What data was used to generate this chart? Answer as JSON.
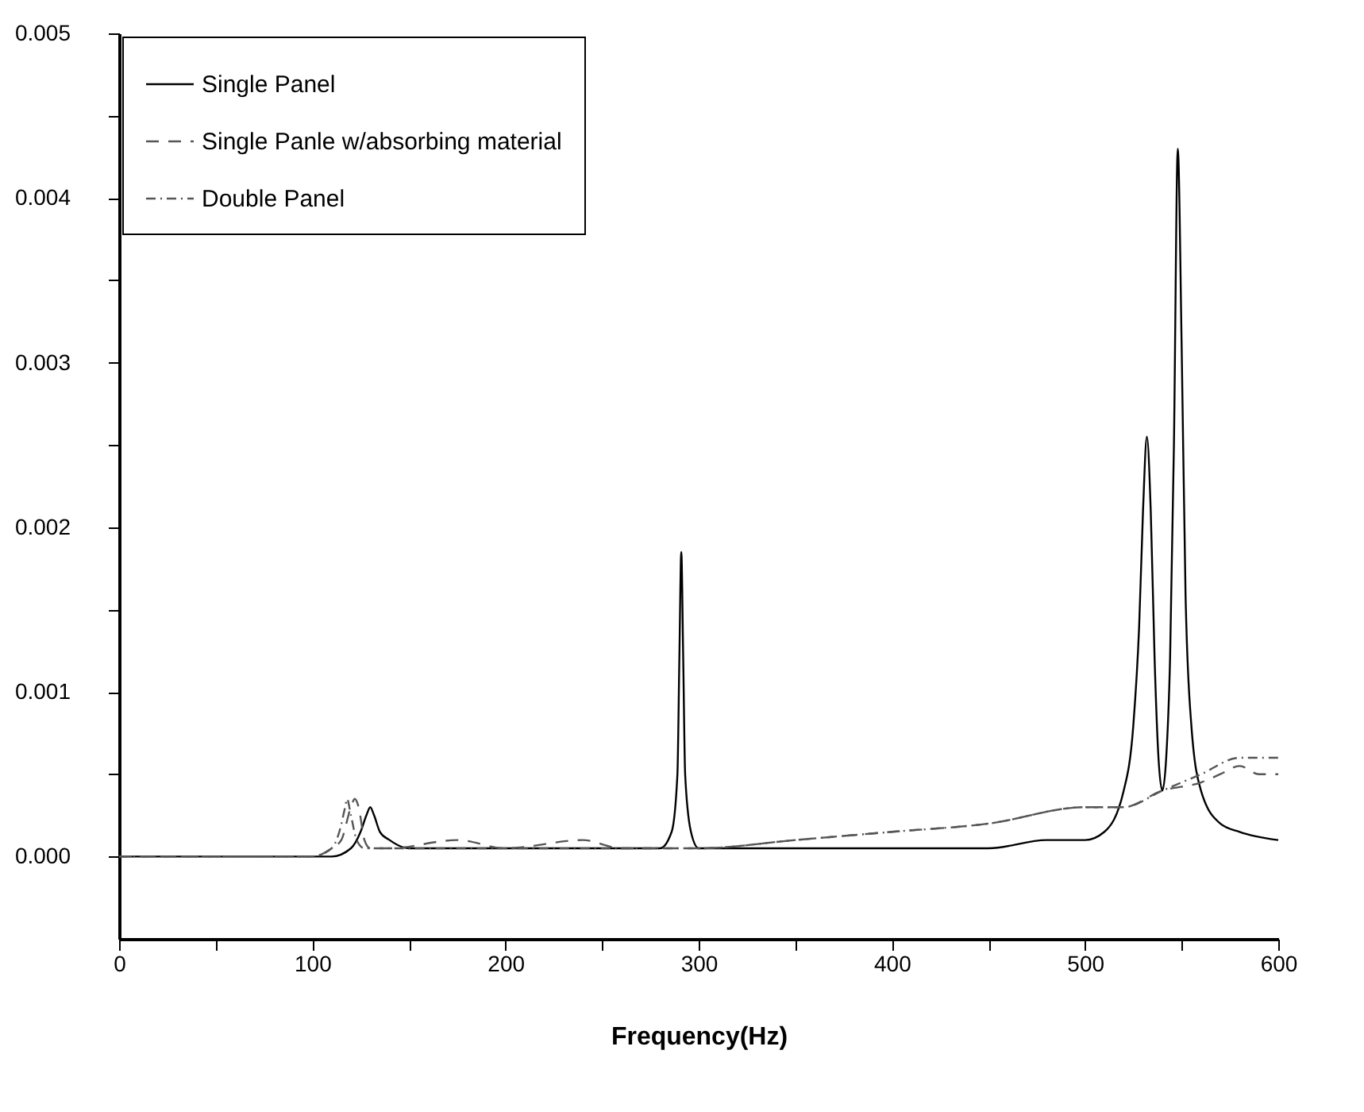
{
  "chart_data": {
    "type": "line",
    "xlabel": "Frequency(Hz)",
    "legend": "top left",
    "xlim": [
      0,
      600
    ],
    "xticks": [
      0,
      {
        "value": 50,
        "label": null
      },
      100,
      {
        "value": 150,
        "label": null
      },
      200,
      {
        "value": 250,
        "label": null
      },
      300,
      {
        "value": 350,
        "label": null
      },
      400,
      {
        "value": 450,
        "label": null
      },
      500,
      {
        "value": 550,
        "label": null
      },
      600
    ],
    "ylim": [
      -0.0005,
      0.005
    ],
    "yticks": [
      {
        "value": 0,
        "label": "0.000"
      },
      {
        "value": 0.0005,
        "label": null
      },
      {
        "value": 0.001,
        "label": "0.001"
      },
      {
        "value": 0.0015,
        "label": null
      },
      {
        "value": 0.002,
        "label": "0.002"
      },
      {
        "value": 0.0025,
        "label": null
      },
      {
        "value": 0.003,
        "label": "0.003"
      },
      {
        "value": 0.0035,
        "label": null
      },
      {
        "value": 0.004,
        "label": "0.004"
      },
      {
        "value": 0.0045,
        "label": null
      },
      {
        "value": 0.005,
        "label": "0.005"
      }
    ],
    "series": [
      {
        "name": "Single Panel",
        "color": "#000000",
        "line_style": "solid",
        "x": [
          0,
          50,
          100,
          110,
          120,
          125,
          128,
          130,
          132,
          135,
          140,
          150,
          200,
          250,
          280,
          286,
          289,
          290,
          291,
          292,
          293,
          296,
          300,
          350,
          400,
          450,
          480,
          500,
          510,
          520,
          525,
          528,
          530,
          532,
          534,
          536,
          538,
          540,
          542,
          544,
          546,
          548,
          550,
          552,
          555,
          560,
          570,
          580,
          600
        ],
        "values": [
          0,
          0,
          0,
          0,
          5e-05,
          0.00015,
          0.00025,
          0.0003,
          0.00025,
          0.00015,
          0.0001,
          5e-05,
          5e-05,
          5e-05,
          5e-05,
          0.00015,
          0.0005,
          0.0012,
          0.00185,
          0.0012,
          0.0005,
          0.00015,
          5e-05,
          5e-05,
          5e-05,
          5e-05,
          0.0001,
          0.0001,
          0.00015,
          0.0004,
          0.0008,
          0.0014,
          0.0021,
          0.00255,
          0.0021,
          0.0012,
          0.0006,
          0.0004,
          0.0006,
          0.0012,
          0.0025,
          0.0043,
          0.0031,
          0.0016,
          0.0008,
          0.0004,
          0.0002,
          0.00015,
          0.0001
        ]
      },
      {
        "name": "Single Panle w/absorbing material",
        "color": "#555555",
        "line_style": "dashed",
        "x": [
          0,
          100,
          110,
          115,
          120,
          122,
          124,
          127,
          130,
          140,
          175,
          200,
          240,
          260,
          300,
          350,
          400,
          450,
          500,
          520,
          540,
          560,
          570,
          580,
          590,
          600
        ],
        "values": [
          0,
          0,
          5e-05,
          0.0001,
          0.0003,
          0.00035,
          0.0003,
          0.0001,
          5e-05,
          5e-05,
          0.0001,
          5e-05,
          0.0001,
          5e-05,
          5e-05,
          0.0001,
          0.00015,
          0.0002,
          0.0003,
          0.0003,
          0.0004,
          0.00045,
          0.0005,
          0.00055,
          0.0005,
          0.0005
        ]
      },
      {
        "name": "Double Panel",
        "color": "#555555",
        "line_style": "dotted",
        "x": [
          0,
          100,
          110,
          114,
          117,
          118,
          120,
          123,
          127,
          140,
          200,
          300,
          350,
          400,
          450,
          500,
          520,
          540,
          560,
          580,
          590,
          600
        ],
        "values": [
          0,
          0,
          5e-05,
          0.00015,
          0.0003,
          0.00035,
          0.00025,
          0.0001,
          5e-05,
          5e-05,
          5e-05,
          5e-05,
          0.0001,
          0.00015,
          0.0002,
          0.0003,
          0.0003,
          0.0004,
          0.0005,
          0.0006,
          0.0006,
          0.0006
        ]
      }
    ]
  }
}
